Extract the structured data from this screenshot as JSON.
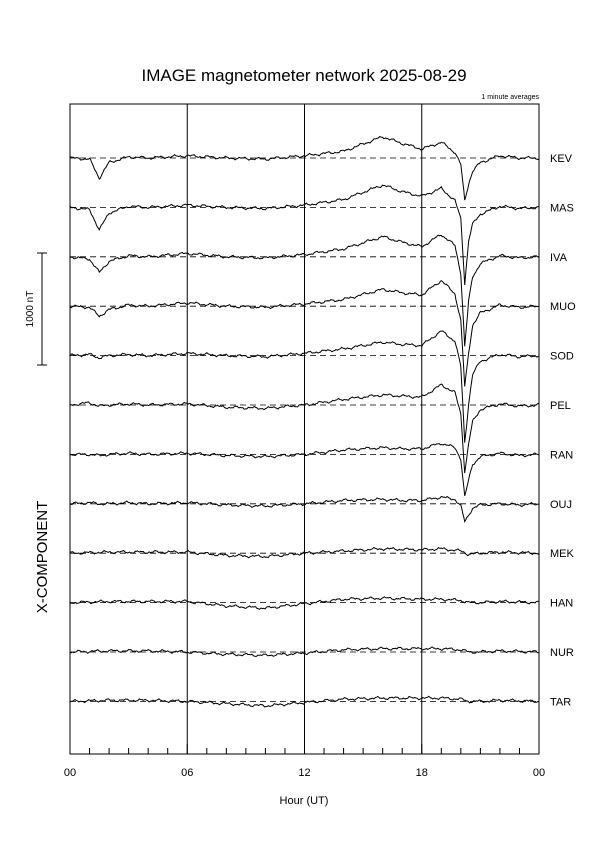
{
  "chart_data": {
    "type": "line",
    "title": "IMAGE magnetometer network 2025-08-29",
    "subtitle": "1 minute averages",
    "xlabel": "Hour (UT)",
    "component_label": "X-COMPONENT",
    "scale_label": "1000 nT",
    "scale_nT": 1000,
    "x_range_hours": [
      0,
      24
    ],
    "x_tick_labels": [
      "00",
      "06",
      "12",
      "18",
      "00"
    ],
    "grid": "vertical lines at 06, 12, 18 UT; dashed baseline per station",
    "stations": [
      {
        "name": "KEV",
        "t": [
          0,
          1,
          1.5,
          2,
          3,
          4,
          6,
          8,
          10,
          12,
          14,
          16,
          17,
          18,
          19,
          19.7,
          20,
          20.2,
          20.4,
          20.6,
          21,
          22,
          23,
          24
        ],
        "dx": [
          0,
          -10,
          -180,
          -40,
          10,
          0,
          20,
          0,
          -10,
          20,
          60,
          190,
          130,
          80,
          140,
          50,
          -60,
          -380,
          -230,
          -120,
          -40,
          20,
          0,
          0
        ]
      },
      {
        "name": "MAS",
        "t": [
          0,
          1,
          1.5,
          2,
          3,
          4,
          6,
          8,
          10,
          12,
          14,
          16,
          17,
          18,
          19,
          19.7,
          20,
          20.2,
          20.4,
          20.6,
          21,
          22,
          23,
          24
        ],
        "dx": [
          0,
          -20,
          -200,
          -50,
          10,
          0,
          20,
          0,
          -10,
          20,
          70,
          200,
          140,
          100,
          170,
          60,
          -100,
          -680,
          -300,
          -150,
          -60,
          10,
          -10,
          0
        ]
      },
      {
        "name": "IVA",
        "t": [
          0,
          1,
          1.5,
          2,
          3,
          4,
          6,
          8,
          10,
          12,
          14,
          16,
          17,
          18,
          19,
          19.7,
          20,
          20.2,
          20.4,
          20.6,
          21,
          22,
          23,
          24
        ],
        "dx": [
          0,
          -20,
          -140,
          -40,
          10,
          0,
          30,
          0,
          -10,
          20,
          70,
          180,
          130,
          90,
          200,
          100,
          -150,
          -800,
          -400,
          -180,
          -60,
          10,
          -10,
          0
        ]
      },
      {
        "name": "MUO",
        "t": [
          0,
          1,
          1.5,
          2,
          3,
          4,
          6,
          8,
          10,
          12,
          14,
          16,
          17,
          18,
          19,
          19.7,
          20,
          20.2,
          20.4,
          20.6,
          21,
          22,
          23,
          24
        ],
        "dx": [
          0,
          -10,
          -90,
          -30,
          10,
          0,
          30,
          0,
          -10,
          20,
          60,
          150,
          120,
          100,
          230,
          110,
          -130,
          -720,
          -420,
          -170,
          -60,
          10,
          -10,
          0
        ]
      },
      {
        "name": "SOD",
        "t": [
          0,
          1,
          1.5,
          2,
          3,
          4,
          6,
          8,
          10,
          12,
          14,
          16,
          17,
          18,
          19,
          19.7,
          20,
          20.2,
          20.4,
          20.6,
          21,
          22,
          23,
          24
        ],
        "dx": [
          0,
          10,
          -20,
          0,
          10,
          0,
          20,
          0,
          -10,
          20,
          60,
          120,
          100,
          90,
          220,
          130,
          -100,
          -780,
          -430,
          -170,
          -50,
          10,
          -10,
          0
        ]
      },
      {
        "name": "PEL",
        "t": [
          0,
          1,
          1.5,
          2,
          3,
          4,
          6,
          8,
          10,
          12,
          14,
          16,
          17,
          18,
          19,
          19.7,
          20,
          20.2,
          20.4,
          20.6,
          21,
          22,
          23,
          24
        ],
        "dx": [
          0,
          20,
          -10,
          0,
          10,
          0,
          10,
          -20,
          -30,
          0,
          50,
          90,
          80,
          70,
          180,
          110,
          -80,
          -600,
          -350,
          -150,
          -40,
          10,
          -10,
          0
        ]
      },
      {
        "name": "RAN",
        "t": [
          0,
          1,
          1.5,
          2,
          3,
          4,
          6,
          8,
          10,
          12,
          14,
          16,
          17,
          18,
          19,
          19.7,
          20,
          20.2,
          20.4,
          20.6,
          21,
          22,
          23,
          24
        ],
        "dx": [
          0,
          0,
          -10,
          0,
          10,
          0,
          10,
          -10,
          -20,
          0,
          40,
          60,
          50,
          50,
          100,
          60,
          -40,
          -380,
          -230,
          -90,
          -20,
          10,
          -10,
          0
        ]
      },
      {
        "name": "OUJ",
        "t": [
          0,
          1,
          1.5,
          2,
          3,
          4,
          6,
          8,
          10,
          12,
          14,
          16,
          17,
          18,
          19,
          19.7,
          20,
          20.2,
          20.4,
          20.6,
          21,
          22,
          23,
          24
        ],
        "dx": [
          0,
          10,
          0,
          0,
          10,
          0,
          10,
          -10,
          -20,
          0,
          30,
          40,
          30,
          30,
          60,
          40,
          -20,
          -160,
          -100,
          -40,
          -10,
          0,
          -10,
          0
        ]
      },
      {
        "name": "MEK",
        "t": [
          0,
          2,
          4,
          6,
          8,
          10,
          12,
          14,
          16,
          18,
          19,
          20,
          20.4,
          21,
          22,
          24
        ],
        "dx": [
          0,
          10,
          10,
          10,
          -20,
          -30,
          0,
          20,
          40,
          30,
          40,
          20,
          -10,
          0,
          10,
          0
        ]
      },
      {
        "name": "HAN",
        "t": [
          0,
          2,
          4,
          6,
          8,
          10,
          12,
          14,
          16,
          18,
          19,
          20,
          20.4,
          21,
          22,
          24
        ],
        "dx": [
          0,
          10,
          10,
          10,
          -30,
          -50,
          -10,
          30,
          40,
          30,
          30,
          20,
          0,
          0,
          10,
          0
        ]
      },
      {
        "name": "NUR",
        "t": [
          0,
          2,
          4,
          6,
          8,
          10,
          12,
          14,
          16,
          18,
          19,
          20,
          20.4,
          21,
          22,
          24
        ],
        "dx": [
          0,
          10,
          10,
          0,
          -20,
          -30,
          -10,
          20,
          30,
          30,
          30,
          20,
          0,
          0,
          10,
          0
        ]
      },
      {
        "name": "TAR",
        "t": [
          0,
          2,
          4,
          6,
          8,
          10,
          12,
          14,
          16,
          18,
          19,
          20,
          20.4,
          21,
          22,
          24
        ],
        "dx": [
          0,
          10,
          10,
          0,
          -20,
          -40,
          -10,
          20,
          30,
          30,
          30,
          20,
          0,
          0,
          10,
          0
        ]
      }
    ]
  }
}
